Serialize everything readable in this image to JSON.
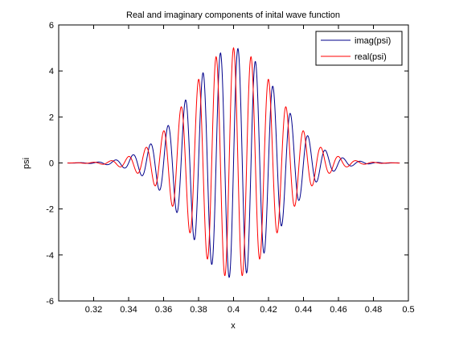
{
  "chart_data": {
    "type": "line",
    "title": "Real and imaginary components of inital wave function",
    "xlabel": "x",
    "ylabel": "psi",
    "xlim": [
      0.3,
      0.5
    ],
    "ylim": [
      -6,
      6
    ],
    "x_ticks": [
      0.32,
      0.34,
      0.36,
      0.38,
      0.4,
      0.42,
      0.44,
      0.46,
      0.48,
      0.5
    ],
    "x_tick_labels": [
      "0.32",
      "0.34",
      "0.36",
      "0.38",
      "0.4",
      "0.42",
      "0.44",
      "0.46",
      "0.48",
      "0.5"
    ],
    "y_ticks": [
      -6,
      -4,
      -2,
      0,
      2,
      4,
      6
    ],
    "y_tick_labels": [
      "-6",
      "-4",
      "-2",
      "0",
      "2",
      "4",
      "6"
    ],
    "grid": false,
    "legend_position": "top-right",
    "x_start": 0.305,
    "x_end": 0.495,
    "envelope_center": 0.4,
    "envelope_amplitude": 5.0,
    "envelope_sigma": 0.025,
    "wavelength": 0.01,
    "series": [
      {
        "name": "imag(psi)",
        "color": "#00008b",
        "component": "sin"
      },
      {
        "name": "real(psi)",
        "color": "#ff0000",
        "component": "cos"
      }
    ]
  }
}
